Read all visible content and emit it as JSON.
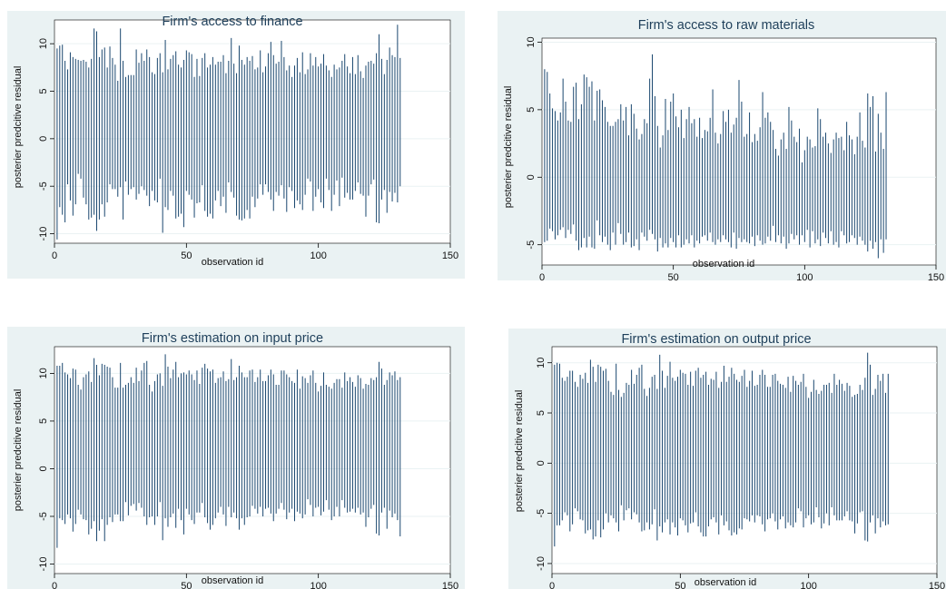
{
  "colors": {
    "panel_bg": "#eaf2f3",
    "plot_bg": "#ffffff",
    "bars": "#1a476f",
    "grid": "#eaf2f3",
    "title": "#1e3f5a"
  },
  "chart_data": [
    {
      "type": "bar",
      "title": "Firm's access to finance",
      "xlabel": "observation id",
      "ylabel": "posterier predcitive residual",
      "xlim": [
        0,
        150
      ],
      "ylim": [
        -11,
        12.5
      ],
      "xticks": [
        0,
        50,
        100,
        150
      ],
      "yticks": [
        -10,
        -5,
        0,
        5,
        10
      ],
      "n_obs": 131,
      "grid": true,
      "values_high": [
        9.5,
        9.8,
        9.9,
        8.2,
        7.3,
        9.1,
        8.6,
        8.4,
        8.3,
        8.2,
        8.3,
        8.1,
        7.5,
        8.4,
        11.6,
        11.3,
        8.6,
        9.4,
        9.6,
        7.5,
        9.7,
        8.5,
        7.8,
        6.1,
        11.6,
        8.2,
        6.5,
        6.7,
        6.7,
        6.7,
        9.4,
        8.0,
        9.0,
        8.2,
        9.4,
        8.6,
        7.0,
        6.8,
        8.5,
        9.0,
        7.0,
        10.4,
        7.3,
        8.4,
        8.8,
        9.2,
        7.8,
        7.5,
        8.3,
        9.3,
        9.1,
        8.9,
        6.5,
        8.4,
        6.6,
        8.5,
        9.0,
        7.5,
        7.8,
        8.6,
        7.8,
        8.1,
        8.1,
        8.8,
        6.9,
        8.2,
        10.6,
        7.9,
        6.9,
        9.8,
        8.3,
        7.8,
        8.6,
        8.2,
        8.7,
        7.3,
        7.5,
        9.3,
        7.0,
        7.6,
        9.0,
        10.2,
        8.8,
        7.9,
        8.1,
        10.3,
        8.6,
        7.2,
        7.7,
        6.5,
        7.7,
        8.5,
        7.0,
        9.1,
        6.8,
        7.3,
        9.0,
        7.7,
        8.6,
        7.6,
        7.9,
        8.9,
        7.7,
        7.2,
        6.5,
        7.8,
        7.3,
        7.5,
        8.2,
        8.9,
        7.6,
        6.9,
        8.6,
        6.8,
        8.8,
        7.1,
        6.4,
        7.7,
        8.1,
        8.2,
        7.9,
        9.0,
        11.0,
        8.4,
        6.8,
        8.3,
        9.6,
        8.8,
        8.6,
        12.0,
        8.5
      ],
      "values_low": [
        -10.6,
        -7.2,
        -8.0,
        -8.8,
        -4.8,
        -6.5,
        -8.1,
        -6.9,
        -3.7,
        -4.2,
        -6.2,
        -6.9,
        -8.5,
        -8.3,
        -8.0,
        -9.7,
        -8.5,
        -6.9,
        -8.2,
        -6.7,
        -4.8,
        -5.3,
        -5.3,
        -6.1,
        -5.1,
        -8.5,
        -4.5,
        -5.9,
        -5.3,
        -5.1,
        -6.4,
        -5.8,
        -5.0,
        -5.4,
        -6.0,
        -7.1,
        -5.5,
        -6.5,
        -6.7,
        -4.2,
        -9.9,
        -7.2,
        -7.5,
        -5.5,
        -6.0,
        -8.4,
        -8.2,
        -7.9,
        -9.3,
        -5.5,
        -5.9,
        -6.4,
        -8.3,
        -6.8,
        -6.7,
        -4.9,
        -7.6,
        -8.2,
        -7.9,
        -8.4,
        -6.5,
        -5.5,
        -7.1,
        -6.1,
        -7.8,
        -4.6,
        -5.6,
        -6.2,
        -8.1,
        -8.5,
        -8.6,
        -8.4,
        -7.5,
        -8.4,
        -6.1,
        -7.2,
        -6.3,
        -4.8,
        -5.9,
        -4.8,
        -5.6,
        -6.4,
        -7.6,
        -5.6,
        -6.0,
        -4.9,
        -6.3,
        -7.7,
        -5.1,
        -5.5,
        -7.3,
        -6.5,
        -6.9,
        -7.5,
        -5.9,
        -4.2,
        -4.5,
        -7.6,
        -6.1,
        -5.3,
        -6.7,
        -7.3,
        -4.2,
        -5.4,
        -7.6,
        -5.9,
        -4.4,
        -7.1,
        -4.1,
        -6.2,
        -5.7,
        -6.4,
        -6.4,
        -5.5,
        -4.6,
        -5.8,
        -6.0,
        -8.2,
        -6.0,
        -4.8,
        -4.3,
        -8.8,
        -8.9,
        -6.4,
        -5.4,
        -7.8,
        -5.6,
        -6.6,
        -5.7,
        -6.7,
        -5.0
      ]
    },
    {
      "type": "bar",
      "title": "Firm's access to raw materials",
      "xlabel": "observation id",
      "ylabel": "posterier predcitive residual",
      "xlim": [
        0,
        150
      ],
      "ylim": [
        -6.5,
        10.3
      ],
      "xticks": [
        0,
        50,
        100,
        150
      ],
      "yticks": [
        -5,
        0,
        5,
        10
      ],
      "n_obs": 131,
      "grid": true,
      "values_high": [
        8.0,
        7.8,
        6.2,
        5.1,
        4.9,
        4.2,
        4.8,
        7.3,
        5.6,
        4.2,
        4.1,
        6.7,
        7.0,
        4.3,
        5.4,
        7.6,
        7.4,
        6.7,
        7.1,
        4.2,
        6.4,
        6.5,
        5.7,
        5.2,
        4.1,
        3.8,
        3.8,
        4.1,
        4.3,
        5.4,
        4.2,
        5.2,
        3.1,
        5.4,
        4.7,
        3.6,
        2.8,
        3.2,
        4.3,
        4.0,
        7.3,
        9.1,
        6.0,
        3.8,
        2.2,
        3.1,
        5.8,
        3.5,
        5.6,
        6.2,
        4.5,
        3.7,
        5.0,
        2.9,
        4.3,
        5.2,
        4.0,
        4.3,
        3.0,
        4.4,
        2.9,
        3.5,
        3.4,
        4.4,
        6.5,
        3.3,
        2.5,
        3.2,
        4.9,
        4.1,
        5.0,
        3.3,
        3.9,
        4.4,
        7.2,
        5.6,
        3.0,
        3.2,
        4.8,
        2.6,
        3.2,
        2.7,
        3.7,
        6.3,
        4.4,
        4.8,
        4.1,
        3.5,
        2.1,
        1.6,
        2.8,
        3.3,
        2.1,
        5.2,
        4.2,
        3.0,
        2.6,
        3.6,
        1.1,
        2.0,
        3.0,
        2.8,
        2.2,
        2.3,
        5.1,
        4.3,
        3.0,
        3.3,
        2.5,
        1.8,
        2.8,
        3.3,
        2.9,
        3.0,
        2.0,
        4.1,
        3.1,
        2.8,
        1.7,
        3.0,
        4.8,
        2.7,
        2.2,
        6.2,
        5.2,
        6.0,
        1.9,
        4.7,
        3.3,
        2.1,
        6.3
      ],
      "values_low": [
        -4.8,
        -4.7,
        -3.8,
        -4.0,
        -4.6,
        -4.3,
        -3.9,
        -3.7,
        -4.5,
        -3.9,
        -4.2,
        -3.5,
        -4.7,
        -5.4,
        -5.2,
        -4.5,
        -5.2,
        -4.4,
        -5.2,
        -5.3,
        -3.2,
        -4.3,
        -4.8,
        -4.4,
        -5.0,
        -5.4,
        -4.1,
        -5.0,
        -3.4,
        -4.2,
        -5.0,
        -4.8,
        -4.1,
        -5.2,
        -5.1,
        -4.6,
        -5.4,
        -4.1,
        -4.4,
        -4.7,
        -3.9,
        -4.2,
        -4.6,
        -5.5,
        -4.5,
        -5.2,
        -4.9,
        -5.2,
        -4.5,
        -4.8,
        -5.2,
        -4.3,
        -5.2,
        -5.0,
        -4.6,
        -4.9,
        -4.3,
        -5.2,
        -4.7,
        -4.9,
        -4.4,
        -4.3,
        -4.7,
        -4.1,
        -4.8,
        -5.0,
        -4.6,
        -4.8,
        -4.3,
        -4.6,
        -4.8,
        -5.2,
        -4.1,
        -5.3,
        -4.5,
        -4.8,
        -4.6,
        -4.8,
        -4.9,
        -4.4,
        -5.1,
        -4.3,
        -4.7,
        -5.0,
        -4.9,
        -4.4,
        -4.7,
        -3.6,
        -4.8,
        -4.3,
        -4.9,
        -4.4,
        -5.3,
        -4.9,
        -4.2,
        -4.6,
        -4.3,
        -5.0,
        -4.3,
        -4.8,
        -3.9,
        -5.2,
        -4.0,
        -4.9,
        -4.6,
        -5.1,
        -4.1,
        -4.5,
        -4.9,
        -4.0,
        -5.0,
        -4.8,
        -5.2,
        -4.0,
        -4.3,
        -4.9,
        -4.8,
        -4.3,
        -4.5,
        -5.0,
        -4.4,
        -4.7,
        -5.0,
        -5.5,
        -4.7,
        -5.3,
        -4.8,
        -6.0,
        -4.6,
        -5.6,
        -4.6
      ]
    },
    {
      "type": "bar",
      "title": "Firm's estimation on input price",
      "xlabel": "observation id",
      "ylabel": "posterier predcitive residual",
      "xlim": [
        0,
        150
      ],
      "ylim": [
        -11,
        12.8
      ],
      "xticks": [
        0,
        50,
        100,
        150
      ],
      "yticks": [
        -10,
        -5,
        0,
        5,
        10
      ],
      "n_obs": 131,
      "grid": true,
      "values_high": [
        10.8,
        10.8,
        11.1,
        10.1,
        9.9,
        9.5,
        10.5,
        10.4,
        8.8,
        8.3,
        9.6,
        9.9,
        10.2,
        9.1,
        11.6,
        10.9,
        9.8,
        11.0,
        10.9,
        10.7,
        10.6,
        9.6,
        8.5,
        8.5,
        11.1,
        8.5,
        8.8,
        9.0,
        9.6,
        9.0,
        10.6,
        9.2,
        10.3,
        11.1,
        11.3,
        8.8,
        8.1,
        9.2,
        9.9,
        10.0,
        8.7,
        12.0,
        10.7,
        9.5,
        10.4,
        11.2,
        9.6,
        10.0,
        10.1,
        9.9,
        10.3,
        9.9,
        9.3,
        10.3,
        8.9,
        10.6,
        11.0,
        10.5,
        10.2,
        10.4,
        9.0,
        9.5,
        9.6,
        10.2,
        9.2,
        9.4,
        11.5,
        9.3,
        9.6,
        10.8,
        10.1,
        9.6,
        9.6,
        10.3,
        10.4,
        9.1,
        9.6,
        10.4,
        9.2,
        9.2,
        9.8,
        10.4,
        9.9,
        8.8,
        8.8,
        10.3,
        10.3,
        9.9,
        9.6,
        9.2,
        9.0,
        10.4,
        8.4,
        9.7,
        9.5,
        9.0,
        9.8,
        10.3,
        9.0,
        8.1,
        8.7,
        10.1,
        8.8,
        8.6,
        8.4,
        9.0,
        9.4,
        9.4,
        8.5,
        10.1,
        9.2,
        9.6,
        9.1,
        8.6,
        9.8,
        9.5,
        8.4,
        8.9,
        8.8,
        9.5,
        9.3,
        9.6,
        11.2,
        10.5,
        8.8,
        9.3,
        10.1,
        9.8,
        10.2,
        9.3,
        9.6
      ],
      "values_low": [
        -8.3,
        -5.2,
        -5.4,
        -5.8,
        -4.8,
        -5.2,
        -6.6,
        -5.8,
        -4.3,
        -4.8,
        -5.3,
        -5.4,
        -6.9,
        -6.3,
        -5.5,
        -7.6,
        -6.5,
        -5.3,
        -7.6,
        -5.9,
        -5.1,
        -5.6,
        -4.8,
        -4.8,
        -5.5,
        -5.5,
        -3.5,
        -4.9,
        -3.9,
        -3.7,
        -4.4,
        -3.6,
        -4.1,
        -5.0,
        -5.9,
        -5.1,
        -5.0,
        -5.9,
        -5.0,
        -3.5,
        -7.5,
        -5.2,
        -6.1,
        -5.1,
        -4.7,
        -6.2,
        -4.2,
        -5.4,
        -6.9,
        -4.2,
        -4.8,
        -5.4,
        -5.8,
        -4.6,
        -4.6,
        -3.6,
        -5.1,
        -5.7,
        -6.4,
        -5.9,
        -5.2,
        -4.6,
        -4.0,
        -4.8,
        -6.0,
        -4.0,
        -5.1,
        -4.6,
        -5.2,
        -6.4,
        -5.2,
        -5.9,
        -5.1,
        -5.0,
        -3.9,
        -4.2,
        -4.7,
        -4.0,
        -5.0,
        -4.2,
        -4.1,
        -4.7,
        -5.5,
        -4.7,
        -4.2,
        -3.6,
        -4.3,
        -5.3,
        -4.6,
        -4.2,
        -5.5,
        -4.5,
        -4.7,
        -5.2,
        -4.8,
        -3.2,
        -3.8,
        -5.0,
        -4.1,
        -4.0,
        -4.9,
        -4.5,
        -3.3,
        -4.3,
        -5.4,
        -5.0,
        -4.0,
        -5.0,
        -3.3,
        -4.1,
        -4.6,
        -4.5,
        -4.2,
        -4.6,
        -4.1,
        -4.8,
        -4.6,
        -6.1,
        -5.1,
        -4.2,
        -3.8,
        -6.8,
        -7.0,
        -4.6,
        -4.1,
        -6.3,
        -4.4,
        -5.1,
        -4.7,
        -5.4,
        -7.1
      ]
    },
    {
      "type": "bar",
      "title": "Firm's estimation on output price",
      "xlabel": "observation id",
      "ylabel": "posterier predcitive residual",
      "xlim": [
        0,
        150
      ],
      "ylim": [
        -11,
        11.6
      ],
      "xticks": [
        0,
        50,
        100,
        150
      ],
      "yticks": [
        -10,
        -5,
        0,
        5,
        10
      ],
      "n_obs": 131,
      "grid": true,
      "values_high": [
        9.8,
        10.0,
        9.9,
        8.5,
        8.2,
        8.6,
        9.2,
        9.2,
        8.1,
        7.6,
        8.8,
        8.4,
        9.0,
        8.0,
        10.3,
        9.6,
        8.1,
        9.8,
        9.6,
        9.2,
        9.4,
        8.2,
        7.1,
        6.8,
        9.9,
        7.3,
        6.6,
        7.0,
        8.0,
        7.8,
        9.3,
        7.9,
        8.8,
        9.5,
        9.8,
        7.4,
        6.7,
        7.5,
        8.6,
        8.8,
        7.4,
        10.8,
        9.2,
        7.5,
        8.7,
        10.1,
        8.5,
        8.2,
        8.6,
        9.3,
        9.0,
        8.9,
        7.8,
        9.1,
        7.7,
        9.2,
        9.5,
        8.5,
        8.8,
        9.1,
        7.8,
        8.4,
        8.3,
        9.1,
        7.5,
        8.1,
        9.7,
        8.1,
        8.6,
        9.5,
        8.9,
        8.3,
        8.1,
        8.7,
        9.3,
        7.6,
        8.2,
        9.2,
        7.7,
        7.8,
        8.8,
        9.3,
        8.8,
        7.6,
        7.6,
        8.8,
        8.9,
        8.2,
        7.9,
        7.8,
        7.5,
        8.6,
        7.1,
        8.7,
        8.2,
        7.8,
        8.1,
        8.9,
        7.6,
        6.5,
        7.1,
        8.3,
        7.3,
        6.9,
        7.2,
        7.8,
        7.8,
        8.0,
        7.0,
        8.9,
        7.8,
        8.3,
        7.9,
        7.2,
        8.0,
        7.7,
        6.6,
        6.8,
        6.9,
        7.8,
        7.3,
        8.5,
        11.0,
        9.8,
        6.8,
        7.4,
        8.8,
        8.2,
        8.9,
        7.0,
        8.9
      ],
      "values_low": [
        -8.3,
        -6.2,
        -6.2,
        -5.7,
        -4.9,
        -5.2,
        -6.8,
        -6.1,
        -4.5,
        -4.8,
        -5.6,
        -5.7,
        -7.0,
        -6.7,
        -6.6,
        -7.6,
        -7.3,
        -5.7,
        -7.4,
        -6.6,
        -5.0,
        -5.9,
        -5.2,
        -5.5,
        -5.9,
        -6.8,
        -4.2,
        -5.7,
        -4.7,
        -4.5,
        -5.6,
        -4.9,
        -5.1,
        -5.9,
        -6.8,
        -6.7,
        -5.9,
        -6.6,
        -6.1,
        -4.6,
        -7.7,
        -6.3,
        -6.9,
        -5.9,
        -5.6,
        -7.1,
        -5.9,
        -6.4,
        -7.2,
        -5.5,
        -5.7,
        -6.2,
        -6.9,
        -6.0,
        -5.9,
        -4.9,
        -6.3,
        -6.9,
        -7.3,
        -7.3,
        -6.3,
        -5.6,
        -5.4,
        -5.9,
        -7.1,
        -5.2,
        -6.2,
        -5.8,
        -6.7,
        -7.2,
        -6.9,
        -7.1,
        -6.5,
        -6.6,
        -5.5,
        -5.6,
        -5.8,
        -5.2,
        -5.9,
        -5.2,
        -5.3,
        -6.1,
        -6.8,
        -5.6,
        -5.5,
        -5.0,
        -5.8,
        -6.6,
        -5.6,
        -5.3,
        -6.5,
        -5.9,
        -6.2,
        -6.4,
        -5.9,
        -4.5,
        -4.8,
        -6.4,
        -5.5,
        -5.2,
        -6.1,
        -5.9,
        -4.4,
        -5.4,
        -6.5,
        -6.0,
        -5.0,
        -6.2,
        -4.4,
        -5.2,
        -5.7,
        -5.7,
        -5.7,
        -5.3,
        -4.8,
        -5.7,
        -5.8,
        -7.0,
        -6.0,
        -4.9,
        -4.8,
        -7.7,
        -7.8,
        -5.9,
        -5.2,
        -7.0,
        -5.5,
        -6.4,
        -5.8,
        -6.2,
        -6.1
      ]
    }
  ]
}
